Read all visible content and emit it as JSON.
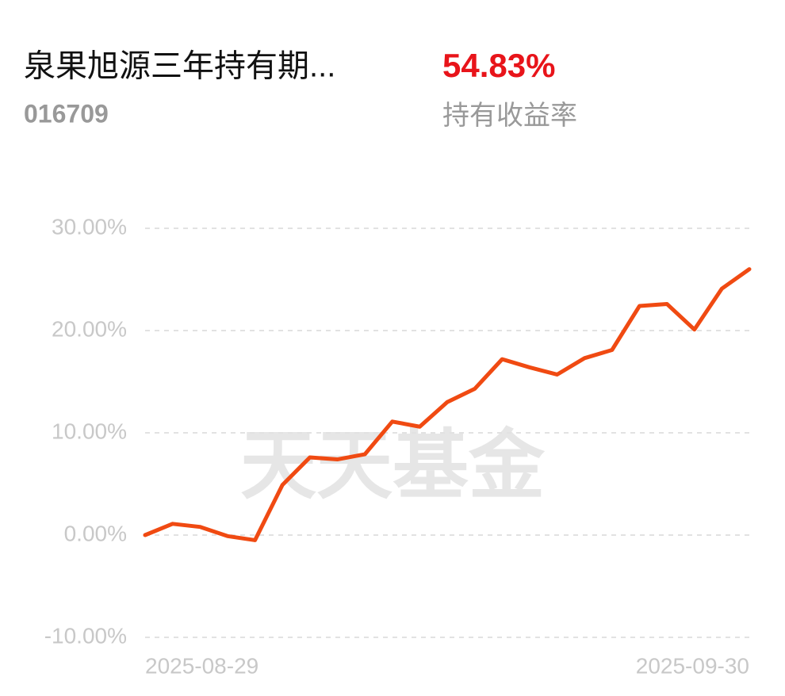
{
  "header": {
    "title": "泉果旭源三年持有期...",
    "code": "016709",
    "return": "54.83%",
    "return_label": "持有收益率"
  },
  "chart_data": {
    "type": "line",
    "watermark": "天天基金",
    "categories": [
      "2025-08-29",
      null,
      null,
      null,
      null,
      null,
      null,
      null,
      null,
      null,
      null,
      null,
      null,
      null,
      null,
      null,
      null,
      null,
      null,
      null,
      null,
      null,
      "2025-09-30"
    ],
    "values": [
      0.0,
      1.1,
      0.8,
      -0.1,
      -0.5,
      4.9,
      7.6,
      7.4,
      7.9,
      11.1,
      10.6,
      13.0,
      14.3,
      17.2,
      16.4,
      15.7,
      17.3,
      18.1,
      22.4,
      22.6,
      20.1,
      24.1,
      26.0
    ],
    "color": "#f04a12",
    "ylim": [
      -10,
      30
    ],
    "yticks": [
      {
        "value": -10,
        "label": "-10.00%"
      },
      {
        "value": 0,
        "label": "0.00%"
      },
      {
        "value": 10,
        "label": "10.00%"
      },
      {
        "value": 20,
        "label": "20.00%"
      },
      {
        "value": 30,
        "label": "30.00%"
      }
    ],
    "grid": true
  }
}
